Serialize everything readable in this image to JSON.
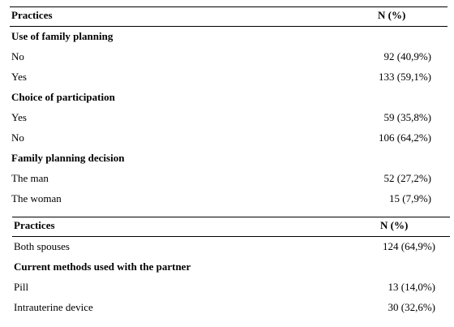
{
  "tables": [
    {
      "header": [
        "Practices",
        "N (%)"
      ],
      "rows": [
        [
          "Use of family planning"
        ],
        [
          "No",
          "92 (40,9%)"
        ],
        [
          "Yes",
          "133 (59,1%)"
        ],
        [
          "Choice of participation"
        ],
        [
          "Yes",
          "59 (35,8%)"
        ],
        [
          "No",
          "106 (64,2%)"
        ],
        [
          "Family planning decision"
        ],
        [
          "The man",
          "52 (27,2%)"
        ],
        [
          "The woman",
          "15 (7,9%)"
        ]
      ]
    },
    {
      "header": [
        "Practices",
        "N (%)"
      ],
      "rows": [
        [
          "Both spouses",
          "124 (64,9%)"
        ],
        [
          "Current methods used with the partner"
        ],
        [
          "Pill",
          "13 (14,0%)"
        ],
        [
          "Intrauterine device",
          "30 (32,6%)"
        ]
      ]
    }
  ]
}
